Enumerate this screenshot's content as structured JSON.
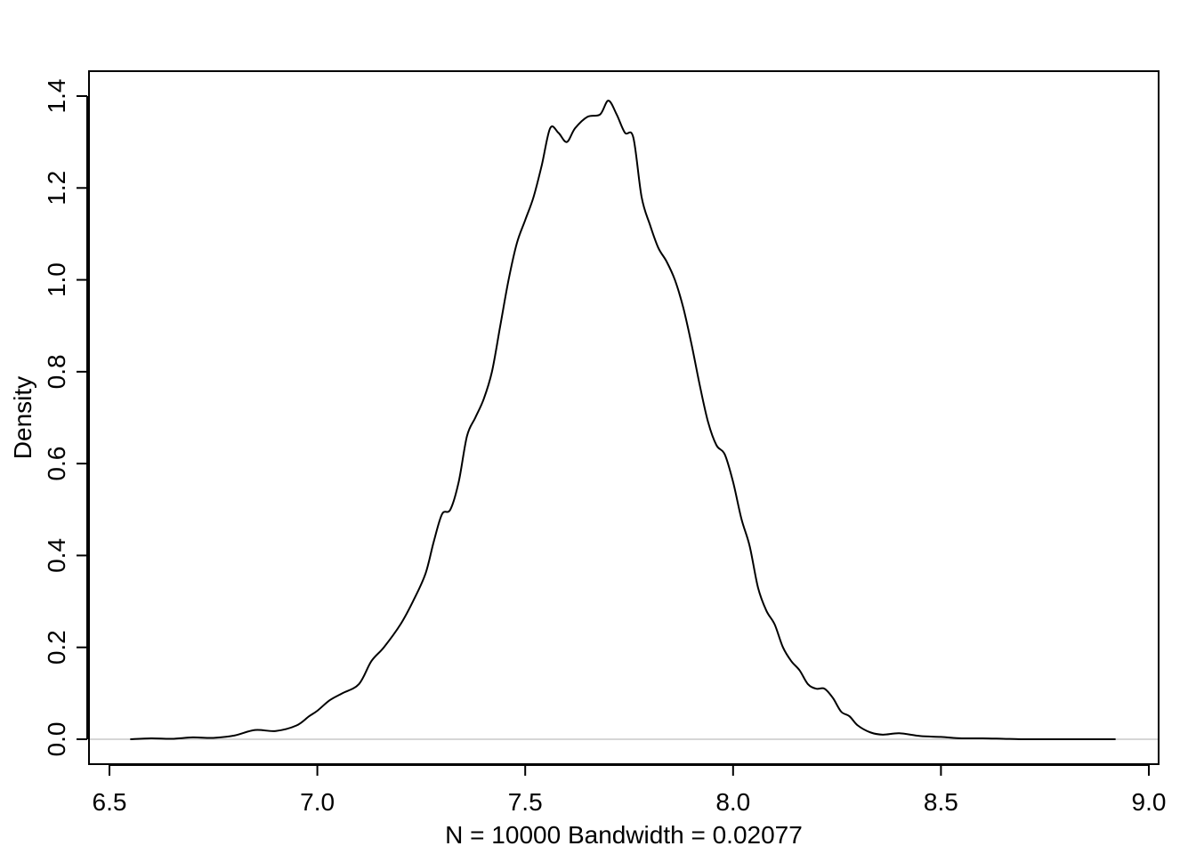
{
  "chart_data": {
    "type": "line",
    "title": "",
    "xlabel": "N = 10000   Bandwidth = 0.02077",
    "ylabel": "Density",
    "xlim": [
      6.5,
      9.0
    ],
    "ylim": [
      0.0,
      1.4
    ],
    "x_ticks": [
      6.5,
      7.0,
      7.5,
      8.0,
      8.5,
      9.0
    ],
    "x_tick_labels": [
      "6.5",
      "7.0",
      "7.5",
      "8.0",
      "8.5",
      "9.0"
    ],
    "y_ticks": [
      0.0,
      0.2,
      0.4,
      0.6,
      0.8,
      1.0,
      1.2,
      1.4
    ],
    "y_tick_labels": [
      "0.0",
      "0.2",
      "0.4",
      "0.6",
      "0.8",
      "1.0",
      "1.2",
      "1.4"
    ],
    "grid": false,
    "baseline": 0.0,
    "series": [
      {
        "x": [
          6.55,
          6.6,
          6.65,
          6.7,
          6.75,
          6.8,
          6.85,
          6.9,
          6.95,
          6.98,
          7.0,
          7.03,
          7.06,
          7.1,
          7.13,
          7.16,
          7.2,
          7.23,
          7.26,
          7.28,
          7.3,
          7.32,
          7.34,
          7.36,
          7.38,
          7.4,
          7.42,
          7.44,
          7.46,
          7.48,
          7.5,
          7.52,
          7.54,
          7.56,
          7.58,
          7.6,
          7.62,
          7.65,
          7.68,
          7.7,
          7.72,
          7.74,
          7.76,
          7.78,
          7.8,
          7.82,
          7.84,
          7.86,
          7.88,
          7.9,
          7.92,
          7.94,
          7.96,
          7.98,
          8.0,
          8.02,
          8.04,
          8.06,
          8.08,
          8.1,
          8.12,
          8.14,
          8.16,
          8.18,
          8.2,
          8.22,
          8.24,
          8.26,
          8.28,
          8.3,
          8.33,
          8.36,
          8.4,
          8.45,
          8.5,
          8.55,
          8.6,
          8.65,
          8.7,
          8.75,
          8.8,
          8.85,
          8.92
        ],
        "y": [
          0.0,
          0.002,
          0.001,
          0.004,
          0.003,
          0.008,
          0.02,
          0.018,
          0.03,
          0.05,
          0.062,
          0.085,
          0.1,
          0.12,
          0.17,
          0.2,
          0.25,
          0.3,
          0.36,
          0.43,
          0.49,
          0.5,
          0.56,
          0.66,
          0.7,
          0.74,
          0.8,
          0.9,
          1.0,
          1.08,
          1.13,
          1.18,
          1.25,
          1.33,
          1.32,
          1.3,
          1.33,
          1.355,
          1.36,
          1.39,
          1.36,
          1.32,
          1.31,
          1.18,
          1.12,
          1.07,
          1.04,
          1.0,
          0.94,
          0.86,
          0.77,
          0.69,
          0.64,
          0.62,
          0.56,
          0.48,
          0.42,
          0.33,
          0.28,
          0.25,
          0.2,
          0.17,
          0.15,
          0.12,
          0.11,
          0.11,
          0.09,
          0.06,
          0.05,
          0.03,
          0.015,
          0.01,
          0.013,
          0.007,
          0.005,
          0.002,
          0.002,
          0.001,
          0.0,
          0.0,
          0.0,
          0.0,
          0.0
        ]
      }
    ]
  }
}
